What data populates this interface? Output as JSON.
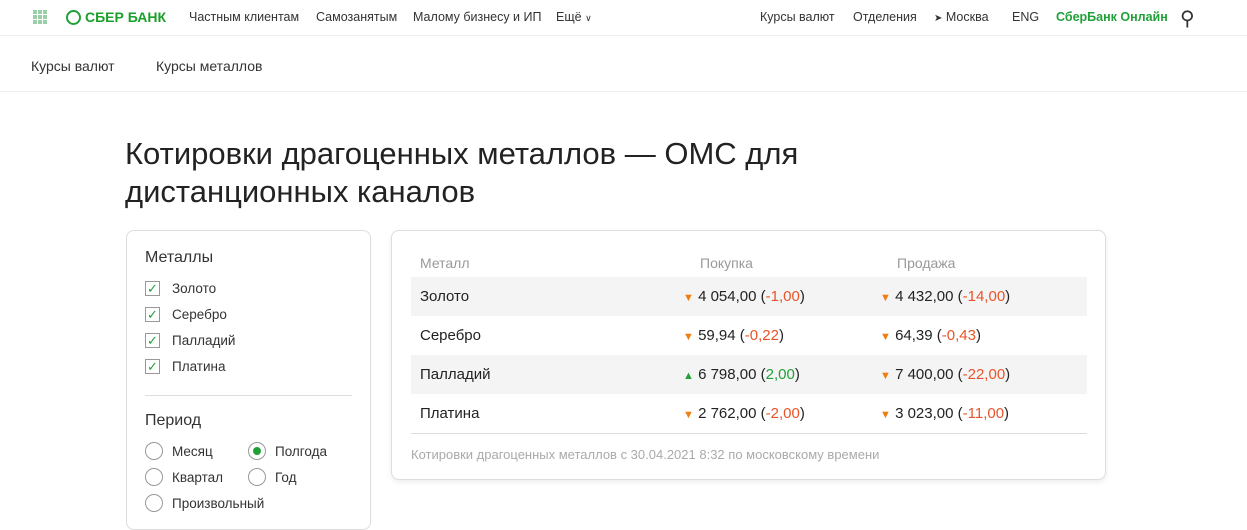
{
  "header": {
    "logo": "СБЕР БАНК",
    "nav": [
      "Частным клиентам",
      "Самозанятым",
      "Малому бизнесу и ИП",
      "Ещё"
    ],
    "right": [
      "Курсы валют",
      "Отделения",
      "Москва",
      "ENG",
      "СберБанк Онлайн"
    ]
  },
  "subnav": [
    "Курсы валют",
    "Курсы металлов"
  ],
  "title": "Котировки драгоценных металлов — ОМС для дистанционных каналов",
  "filters": {
    "metals_title": "Металлы",
    "metals": [
      "Золото",
      "Серебро",
      "Палладий",
      "Платина"
    ],
    "period_title": "Период",
    "periods": [
      "Месяц",
      "Полгода",
      "Квартал",
      "Год",
      "Произвольный"
    ],
    "selected_period": "Полгода"
  },
  "table": {
    "headers": [
      "Металл",
      "Покупка",
      "Продажа"
    ],
    "rows": [
      {
        "metal": "Золото",
        "buy": "4 054,00",
        "buy_delta": "-1,00",
        "buy_dir": "down",
        "sell": "4 432,00",
        "sell_delta": "-14,00",
        "sell_dir": "down"
      },
      {
        "metal": "Серебро",
        "buy": "59,94",
        "buy_delta": "-0,22",
        "buy_dir": "down",
        "sell": "64,39",
        "sell_delta": "-0,43",
        "sell_dir": "down"
      },
      {
        "metal": "Палладий",
        "buy": "6 798,00",
        "buy_delta": "2,00",
        "buy_dir": "up",
        "sell": "7 400,00",
        "sell_delta": "-22,00",
        "sell_dir": "down"
      },
      {
        "metal": "Платина",
        "buy": "2 762,00",
        "buy_delta": "-2,00",
        "buy_dir": "down",
        "sell": "3 023,00",
        "sell_delta": "-11,00",
        "sell_dir": "down"
      }
    ],
    "footnote": "Котировки драгоценных металлов с 30.04.2021 8:32 по московскому времени"
  },
  "colors": {
    "brand": "#21a038",
    "down": "#f07d0f",
    "negative": "#e8542a"
  }
}
